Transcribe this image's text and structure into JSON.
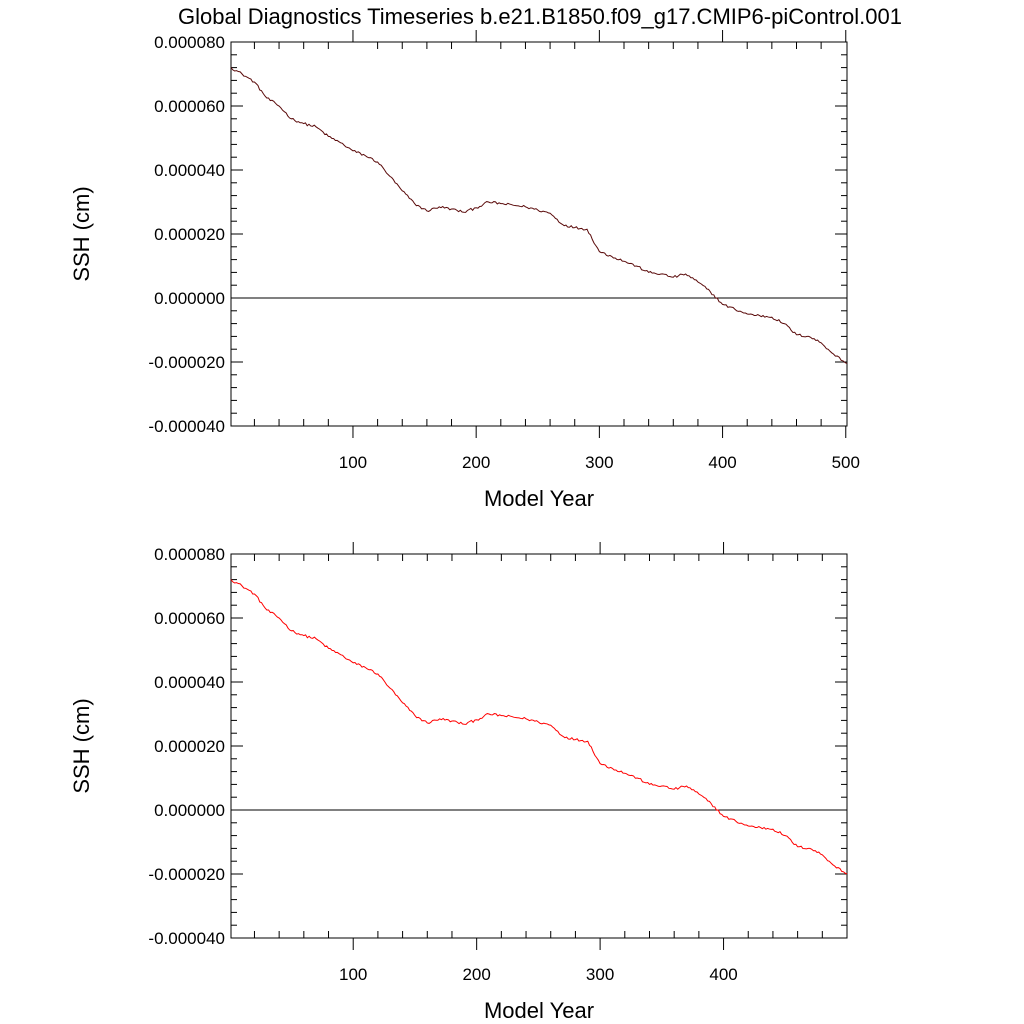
{
  "title": "Global Diagnostics Timeseries b.e21.B1850.f09_g17.CMIP6-piControl.001",
  "chart_data": [
    {
      "type": "line",
      "title": "",
      "xlabel": "Model Year",
      "ylabel": "SSH (cm)",
      "xlim": [
        1,
        501
      ],
      "ylim": [
        -4e-05,
        8e-05
      ],
      "xticks": [
        100,
        200,
        300,
        400,
        500
      ],
      "xtick_labels": [
        "100",
        "200",
        "300",
        "400",
        "500"
      ],
      "yticks": [
        -4e-05,
        -2e-05,
        0,
        2e-05,
        4e-05,
        6e-05,
        8e-05
      ],
      "ytick_labels": [
        "-0.000040",
        "-0.000020",
        "0.000000",
        "0.000020",
        "0.000040",
        "0.000060",
        "0.000080"
      ],
      "reference_line_y": 0,
      "line_color": "#5a0a0a",
      "series": [
        {
          "x": [
            1,
            10,
            20,
            30,
            40,
            50,
            60,
            70,
            80,
            90,
            100,
            110,
            120,
            130,
            140,
            150,
            160,
            170,
            180,
            190,
            200,
            210,
            220,
            230,
            240,
            250,
            260,
            270,
            280,
            290,
            300,
            310,
            320,
            330,
            340,
            350,
            360,
            370,
            380,
            390,
            400,
            410,
            420,
            430,
            440,
            450,
            460,
            470,
            480,
            490,
            501
          ],
          "values": [
            7.2e-05,
            7e-05,
            6.75e-05,
            6.25e-05,
            6e-05,
            5.6e-05,
            5.45e-05,
            5.35e-05,
            5.05e-05,
            4.85e-05,
            4.6e-05,
            4.45e-05,
            4.25e-05,
            3.8e-05,
            3.35e-05,
            2.95e-05,
            2.72e-05,
            2.85e-05,
            2.78e-05,
            2.68e-05,
            2.82e-05,
            3e-05,
            2.95e-05,
            2.9e-05,
            2.85e-05,
            2.75e-05,
            2.65e-05,
            2.3e-05,
            2.2e-05,
            2.15e-05,
            1.45e-05,
            1.3e-05,
            1.15e-05,
            1e-05,
            8e-06,
            7.5e-06,
            6.5e-06,
            7.5e-06,
            5e-06,
            2e-06,
            -2e-06,
            -3.5e-06,
            -5e-06,
            -5.5e-06,
            -6e-06,
            -8e-06,
            -1.15e-05,
            -1.2e-05,
            -1.4e-05,
            -1.75e-05,
            -2.05e-05
          ]
        }
      ]
    },
    {
      "type": "line",
      "title": "",
      "xlabel": "Model Year",
      "ylabel": "SSH (cm)",
      "xlim": [
        1,
        500
      ],
      "ylim": [
        -4e-05,
        8e-05
      ],
      "xticks": [
        100,
        200,
        300,
        400
      ],
      "xtick_labels": [
        "100",
        "200",
        "300",
        "400"
      ],
      "yticks": [
        -4e-05,
        -2e-05,
        0,
        2e-05,
        4e-05,
        6e-05,
        8e-05
      ],
      "ytick_labels": [
        "-0.000040",
        "-0.000020",
        "0.000000",
        "0.000020",
        "0.000040",
        "0.000060",
        "0.000080"
      ],
      "reference_line_y": 0,
      "line_color": "#ff0000",
      "series": [
        {
          "x": [
            1,
            10,
            20,
            30,
            40,
            50,
            60,
            70,
            80,
            90,
            100,
            110,
            120,
            130,
            140,
            150,
            160,
            170,
            180,
            190,
            200,
            210,
            220,
            230,
            240,
            250,
            260,
            270,
            280,
            290,
            300,
            310,
            320,
            330,
            340,
            350,
            360,
            370,
            380,
            390,
            400,
            410,
            420,
            430,
            440,
            450,
            460,
            470,
            480,
            490,
            500
          ],
          "values": [
            7.2e-05,
            7e-05,
            6.75e-05,
            6.25e-05,
            6e-05,
            5.6e-05,
            5.45e-05,
            5.35e-05,
            5.05e-05,
            4.85e-05,
            4.6e-05,
            4.45e-05,
            4.25e-05,
            3.8e-05,
            3.35e-05,
            2.95e-05,
            2.72e-05,
            2.85e-05,
            2.78e-05,
            2.68e-05,
            2.82e-05,
            3e-05,
            2.95e-05,
            2.9e-05,
            2.85e-05,
            2.75e-05,
            2.65e-05,
            2.3e-05,
            2.2e-05,
            2.15e-05,
            1.45e-05,
            1.3e-05,
            1.15e-05,
            1e-05,
            8e-06,
            7.5e-06,
            6.5e-06,
            7.5e-06,
            5e-06,
            2e-06,
            -2e-06,
            -3.5e-06,
            -5e-06,
            -5.5e-06,
            -6e-06,
            -8e-06,
            -1.15e-05,
            -1.2e-05,
            -1.4e-05,
            -1.75e-05,
            -2e-05
          ]
        }
      ]
    }
  ]
}
